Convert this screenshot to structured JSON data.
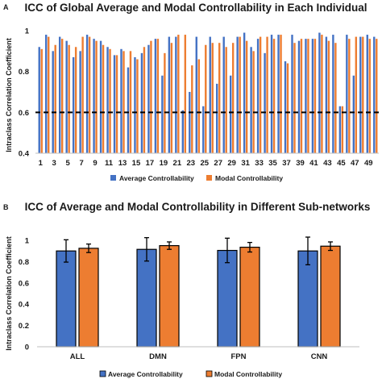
{
  "chart_data": [
    {
      "type": "bar",
      "panel_label": "A",
      "title": "ICC of Global Average and Modal Controllability in Each Individual",
      "xlabel": "",
      "ylabel": "Intraclass Correlation Coefficient",
      "ylim": [
        0.4,
        1.0
      ],
      "yticks": [
        "0.4",
        "0.6",
        "0.8",
        "1"
      ],
      "reference_line": 0.6,
      "x_tick_labels": [
        "1",
        "3",
        "5",
        "7",
        "9",
        "11",
        "13",
        "15",
        "17",
        "19",
        "21",
        "23",
        "25",
        "27",
        "29",
        "31",
        "33",
        "35",
        "37",
        "39",
        "41",
        "43",
        "45",
        "47",
        "49"
      ],
      "categories": [
        1,
        2,
        3,
        4,
        5,
        6,
        7,
        8,
        9,
        10,
        11,
        12,
        13,
        14,
        15,
        16,
        17,
        18,
        19,
        20,
        21,
        22,
        23,
        24,
        25,
        26,
        27,
        28,
        29,
        30,
        31,
        32,
        33,
        34,
        35,
        36,
        37,
        38,
        39,
        40,
        41,
        42,
        43,
        44,
        45,
        46,
        47,
        48,
        49,
        50
      ],
      "legend_position": "bottom",
      "series": [
        {
          "name": "Average Controllability",
          "color": "#4472c4",
          "values": [
            0.92,
            0.98,
            0.9,
            0.97,
            0.95,
            0.87,
            0.9,
            0.98,
            0.96,
            0.95,
            0.92,
            0.88,
            0.91,
            0.82,
            0.87,
            0.89,
            0.93,
            0.96,
            0.78,
            0.97,
            0.97,
            0.61,
            0.7,
            0.97,
            0.63,
            0.97,
            0.74,
            0.97,
            0.78,
            0.97,
            0.99,
            0.92,
            0.96,
            0.89,
            0.98,
            0.98,
            0.85,
            0.98,
            0.95,
            0.96,
            0.96,
            0.99,
            0.97,
            0.98,
            0.63,
            0.98,
            0.78,
            0.97,
            0.98,
            0.97
          ]
        },
        {
          "name": "Modal Controllability",
          "color": "#ed7d31",
          "values": [
            0.91,
            0.97,
            0.93,
            0.96,
            0.93,
            0.92,
            0.97,
            0.97,
            0.95,
            0.93,
            0.91,
            0.88,
            0.9,
            0.9,
            0.86,
            0.92,
            0.95,
            0.96,
            0.89,
            0.94,
            0.98,
            0.98,
            0.83,
            0.86,
            0.93,
            0.94,
            0.94,
            0.92,
            0.94,
            0.97,
            0.95,
            0.9,
            0.97,
            0.97,
            0.96,
            0.98,
            0.84,
            0.94,
            0.96,
            0.96,
            0.96,
            0.98,
            0.95,
            0.94,
            0.63,
            0.96,
            0.97,
            0.97,
            0.96,
            0.96
          ]
        }
      ]
    },
    {
      "type": "bar",
      "panel_label": "B",
      "title": "ICC of Average and Modal Controllability in Different Sub-networks",
      "xlabel": "",
      "ylabel": "Intraclass Correlation Coefficient",
      "ylim": [
        0.0,
        1.0
      ],
      "yticks": [
        "0",
        "0.2",
        "0.4",
        "0.6",
        "0.8",
        "1"
      ],
      "categories": [
        "ALL",
        "DMN",
        "FPN",
        "CNN"
      ],
      "legend_position": "bottom",
      "series": [
        {
          "name": "Average Controllability",
          "color": "#4472c4",
          "values": [
            0.9,
            0.915,
            0.905,
            0.9
          ],
          "error": [
            0.105,
            0.11,
            0.115,
            0.13
          ]
        },
        {
          "name": "Modal Controllability",
          "color": "#ed7d31",
          "values": [
            0.925,
            0.95,
            0.935,
            0.945
          ],
          "error": [
            0.04,
            0.035,
            0.045,
            0.04
          ]
        }
      ]
    }
  ]
}
